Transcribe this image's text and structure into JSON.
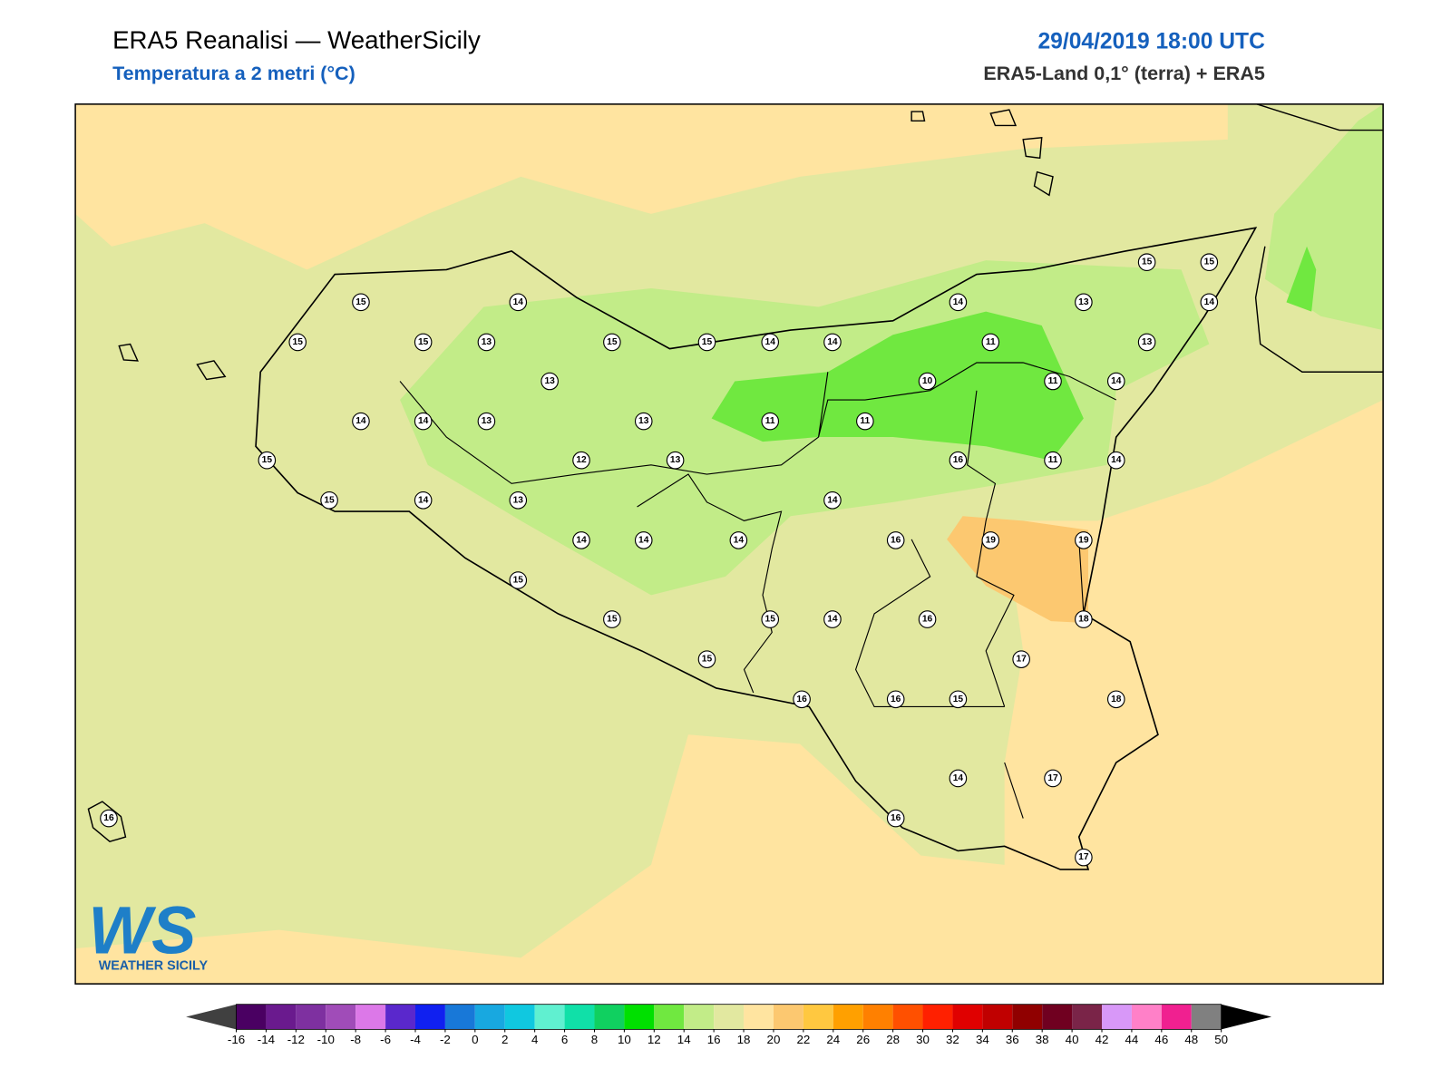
{
  "header": {
    "title": "ERA5 Reanalisi — WeatherSicily",
    "subtitle": "Temperatura a 2 metri (°C)",
    "date": "29/04/2019 18:00 UTC",
    "source": "ERA5-Land 0,1° (terra) + ERA5"
  },
  "stations": [
    15,
    14,
    15,
    15,
    13,
    15,
    15,
    14,
    14,
    14,
    13,
    15,
    15,
    14,
    13,
    11,
    10,
    11,
    14,
    13,
    14,
    14,
    13,
    13,
    11,
    11,
    15,
    12,
    13,
    16,
    11,
    14,
    15,
    14,
    13,
    14,
    14,
    14,
    14,
    16,
    19,
    19,
    15,
    15,
    15,
    14,
    16,
    18,
    17,
    15,
    16,
    16,
    15,
    18,
    14,
    17,
    16,
    16,
    17
  ],
  "colorbar": {
    "ticks": [
      -16,
      -14,
      -12,
      -10,
      -8,
      -6,
      -4,
      -2,
      0,
      2,
      4,
      6,
      8,
      10,
      12,
      14,
      16,
      18,
      20,
      22,
      24,
      26,
      28,
      30,
      32,
      34,
      36,
      38,
      40,
      42,
      44,
      46,
      48,
      50
    ],
    "colors": [
      "#4a0062",
      "#6a1a8e",
      "#7e30a0",
      "#a04cb8",
      "#dc78e8",
      "#5a28cc",
      "#1020f0",
      "#1878d8",
      "#18a8e0",
      "#10c8e0",
      "#60f0d0",
      "#10e0a8",
      "#10d060",
      "#00e000",
      "#70e840",
      "#c2ec88",
      "#e2e8a0",
      "#ffe4a0",
      "#fcc870",
      "#ffc840",
      "#ffa000",
      "#ff8000",
      "#ff5000",
      "#ff2000",
      "#e00000",
      "#c00000",
      "#900000",
      "#700020",
      "#7a2448",
      "#d898f8",
      "#ff80c8",
      "#f02090",
      "#808080"
    ],
    "under": "#404040",
    "over": "#000000"
  },
  "logo": {
    "mark": "WS",
    "text": "WEATHER SICILY"
  }
}
